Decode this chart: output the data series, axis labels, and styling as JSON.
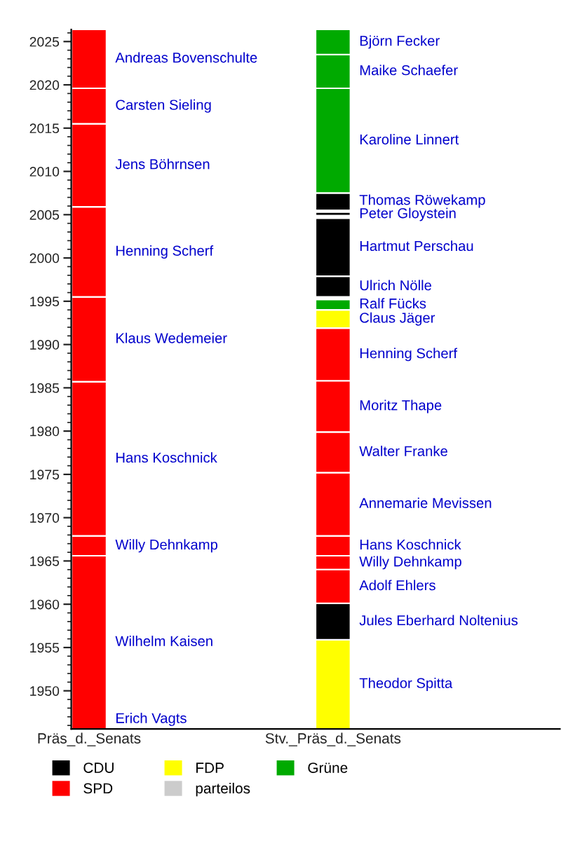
{
  "chart_data": {
    "type": "bar",
    "categories": [
      "Präs_d._Senats",
      "Stv._Präs_d._Senats"
    ],
    "ylim": [
      1945.6,
      2026.4
    ],
    "yticks": [
      1950,
      1955,
      1960,
      1965,
      1970,
      1975,
      1980,
      1985,
      1990,
      1995,
      2000,
      2005,
      2010,
      2015,
      2020,
      2025
    ],
    "legend": "bottom",
    "annotations": [
      "Erich Vagts"
    ],
    "series": [
      {
        "name": "Wilhelm Kaisen",
        "color": "#ff0000",
        "base": [
          1945.6,
          null
        ],
        "values": [
          20.0,
          null
        ]
      },
      {
        "name": "Willy Dehnkamp",
        "color": "#ff0000",
        "base": [
          1965.6,
          1964.0
        ],
        "values": [
          2.3,
          1.6
        ]
      },
      {
        "name": "Hans Koschnick",
        "color": "#ff0000",
        "base": [
          1967.9,
          1965.6
        ],
        "values": [
          17.8,
          2.3
        ]
      },
      {
        "name": "Klaus Wedemeier",
        "color": "#ff0000",
        "base": [
          1985.7,
          null
        ],
        "values": [
          9.8,
          null
        ]
      },
      {
        "name": "Henning Scherf",
        "color": "#ff0000",
        "base": [
          1995.5,
          1985.8
        ],
        "values": [
          10.4,
          6.1
        ]
      },
      {
        "name": "Jens Böhrnsen",
        "color": "#ff0000",
        "base": [
          2005.9,
          null
        ],
        "values": [
          9.6,
          null
        ]
      },
      {
        "name": "Carsten Sieling",
        "color": "#ff0000",
        "base": [
          2015.5,
          null
        ],
        "values": [
          4.1,
          null
        ]
      },
      {
        "name": "Andreas Bovenschulte",
        "color": "#ff0000",
        "base": [
          2019.6,
          null
        ],
        "values": [
          6.8,
          null
        ]
      },
      {
        "name": "Theodor Spitta",
        "color": "#ffff00",
        "base": [
          null,
          1945.6
        ],
        "values": [
          null,
          10.3
        ]
      },
      {
        "name": "Jules Eberhard Noltenius",
        "color": "#000000",
        "base": [
          null,
          1955.9
        ],
        "values": [
          null,
          4.2
        ]
      },
      {
        "name": "Adolf Ehlers",
        "color": "#ff0000",
        "base": [
          null,
          1960.1
        ],
        "values": [
          null,
          3.9
        ]
      },
      {
        "name": "Annemarie Mevissen",
        "color": "#ff0000",
        "base": [
          null,
          1967.9
        ],
        "values": [
          null,
          7.3
        ]
      },
      {
        "name": "Walter Franke",
        "color": "#ff0000",
        "base": [
          null,
          1975.2
        ],
        "values": [
          null,
          4.7
        ]
      },
      {
        "name": "Moritz Thape",
        "color": "#ff0000",
        "base": [
          null,
          1979.9
        ],
        "values": [
          null,
          5.9
        ]
      },
      {
        "name": "Claus Jäger",
        "color": "#ffff00",
        "base": [
          null,
          1991.9
        ],
        "values": [
          null,
          2.1
        ]
      },
      {
        "name": "Ralf Fücks",
        "color": "#00aa00",
        "base": [
          null,
          1994.0
        ],
        "values": [
          null,
          1.2
        ]
      },
      {
        "name": "Ulrich Nölle",
        "color": "#000000",
        "base": [
          null,
          1995.5
        ],
        "values": [
          null,
          2.4
        ]
      },
      {
        "name": "Hartmut Perschau",
        "color": "#000000",
        "base": [
          null,
          1997.9
        ],
        "values": [
          null,
          6.7
        ]
      },
      {
        "name": "Peter Gloystein",
        "color": "#000000",
        "base": [
          null,
          2004.9
        ],
        "values": [
          null,
          0.4
        ]
      },
      {
        "name": "Thomas Röwekamp",
        "color": "#000000",
        "base": [
          null,
          2005.5
        ],
        "values": [
          null,
          2.0
        ]
      },
      {
        "name": "Karoline Linnert",
        "color": "#00aa00",
        "base": [
          null,
          2007.5
        ],
        "values": [
          null,
          12.1
        ]
      },
      {
        "name": "Maike Schaefer",
        "color": "#00aa00",
        "base": [
          null,
          2019.6
        ],
        "values": [
          null,
          3.9
        ]
      },
      {
        "name": "Björn Fecker",
        "color": "#00aa00",
        "base": [
          null,
          2023.5
        ],
        "values": [
          null,
          2.9
        ]
      },
      {
        "name": "CDU",
        "color": "#000000",
        "values": [
          null,
          null
        ]
      },
      {
        "name": "SPD",
        "color": "#ff0000",
        "values": [
          null,
          null
        ]
      },
      {
        "name": "FDP",
        "color": "#ffff00",
        "values": [
          null,
          null
        ]
      },
      {
        "name": "parteilos",
        "color": "#cccccc",
        "values": [
          null,
          null
        ]
      },
      {
        "name": "Grüne",
        "color": "#00aa00",
        "values": [
          null,
          null
        ]
      }
    ]
  }
}
